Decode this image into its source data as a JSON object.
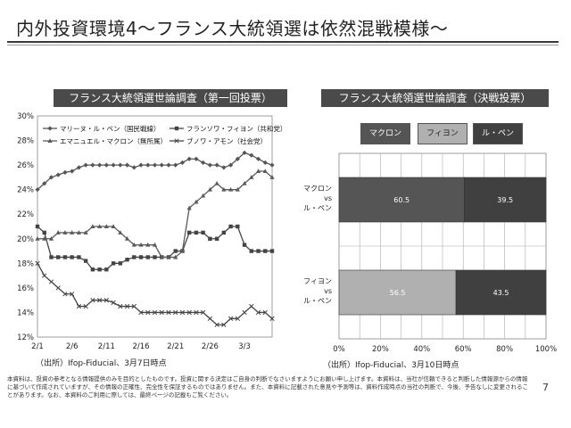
{
  "page": {
    "title": "内外投資環境4～フランス大統領選は依然混戦模様～",
    "page_number": "7",
    "disclaimer": "本資料は、投資の参考となる情報提供のみを目的としたものです。投資に関する決定はご自身の判断でなさいますようにお願い申し上げます。本資料は、当社が信頼できると判断した情報源からの情報に基づいて作成されていますが、その情報の正確性、完全性を保証するものではありません。また、本資料に記載された意見や予測等は、資料作成時点の当社の判断で、今後、予告なしに変更されることがあります。なお、本資料のご利用に際しては、最終ページの記載もご覧ください。"
  },
  "left_panel": {
    "banner": "フランス大統領選世論調査（第一回投票）",
    "source": "（出所）Ifop-Fiducial、3月7日時点"
  },
  "right_panel": {
    "banner": "フランス大統領選世論調査（決戦投票）",
    "source": "（出所）Ifop-Fiducial、3月10日時点"
  },
  "chart_data": [
    {
      "type": "line",
      "title": "フランス大統領選世論調査（第一回投票）",
      "x_tick_labels": [
        "2/1",
        "2/6",
        "2/11",
        "2/16",
        "2/21",
        "2/26",
        "3/3"
      ],
      "x_days": [
        "2/1",
        "2/2",
        "2/3",
        "2/4",
        "2/5",
        "2/6",
        "2/7",
        "2/8",
        "2/9",
        "2/10",
        "2/11",
        "2/12",
        "2/13",
        "2/14",
        "2/15",
        "2/16",
        "2/17",
        "2/18",
        "2/19",
        "2/20",
        "2/21",
        "2/22",
        "2/23",
        "2/24",
        "2/25",
        "2/26",
        "2/27",
        "2/28",
        "3/1",
        "3/2",
        "3/3",
        "3/4",
        "3/5",
        "3/6",
        "3/7"
      ],
      "y_ticks": [
        "12%",
        "14%",
        "16%",
        "18%",
        "20%",
        "22%",
        "24%",
        "26%",
        "28%",
        "30%"
      ],
      "ylim": [
        12,
        30
      ],
      "series": [
        {
          "name": "マリーヌ・ル・ペン（国民戦線）",
          "marker": "diamond",
          "color": "#555555",
          "values": [
            24,
            24.5,
            25,
            25.2,
            25.4,
            25.5,
            25.8,
            26,
            26,
            26,
            26,
            26,
            26,
            26,
            25.8,
            26,
            26,
            26,
            26,
            26,
            26,
            26.2,
            26.5,
            26.5,
            26.2,
            26,
            26,
            25.8,
            26,
            26.5,
            27,
            26.8,
            26.5,
            26.2,
            26
          ]
        },
        {
          "name": "フランソワ・フィヨン（共和党）",
          "marker": "square",
          "color": "#444444",
          "values": [
            21,
            20.5,
            18.5,
            18.5,
            18.5,
            18.5,
            18.5,
            18.2,
            17.5,
            17.5,
            17.5,
            18,
            18,
            18.3,
            18.5,
            18.5,
            18.5,
            18.5,
            18.5,
            18.5,
            19,
            19,
            20.5,
            20.5,
            20.5,
            20,
            20,
            20.5,
            21,
            21,
            19.5,
            19,
            19,
            19,
            19
          ]
        },
        {
          "name": "エマニュエル・マクロン（無所属）",
          "marker": "triangle",
          "color": "#5a5a5a",
          "values": [
            20,
            20,
            20,
            20.5,
            20.5,
            20.5,
            20.5,
            20.5,
            21,
            21,
            21,
            21,
            20.5,
            20,
            19.5,
            19.5,
            19.5,
            19.5,
            18.5,
            18.5,
            18.5,
            19,
            22.5,
            23,
            23.5,
            24,
            24.5,
            24,
            24,
            24,
            24.5,
            25,
            25.5,
            25.5,
            25
          ]
        },
        {
          "name": "ブノワ・アモン（社会党）",
          "marker": "x",
          "color": "#444444",
          "values": [
            18,
            17,
            16.5,
            16,
            15.5,
            15.5,
            14.5,
            14.5,
            15,
            15,
            15,
            14.8,
            14.5,
            14.5,
            14.5,
            14,
            14,
            14,
            14,
            14,
            14,
            14,
            14,
            14,
            14,
            13.5,
            13,
            13,
            13.5,
            13.5,
            14,
            14.5,
            14,
            14,
            13.5
          ]
        }
      ]
    },
    {
      "type": "bar",
      "orientation": "horizontal-stacked",
      "title": "フランス大統領選世論調査（決戦投票）",
      "categories": [
        "マクロン vs ル・ペン",
        "フィヨン vs ル・ペン"
      ],
      "category_lines": [
        [
          "マクロン",
          "vs",
          "ル・ペン"
        ],
        [
          "フィヨン",
          "vs",
          "ル・ペン"
        ]
      ],
      "legend": [
        "マクロン",
        "フィヨン",
        "ル・ペン"
      ],
      "x_ticks": [
        "0%",
        "20%",
        "40%",
        "60%",
        "80%",
        "100%"
      ],
      "xlim": [
        0,
        100
      ],
      "series": [
        {
          "name": "マクロン",
          "color": "#555555",
          "values": [
            60.5,
            null
          ]
        },
        {
          "name": "フィヨン",
          "color": "#b0b0b0",
          "values": [
            null,
            56.5
          ]
        },
        {
          "name": "ル・ペン",
          "color": "#404040",
          "values": [
            39.5,
            43.5
          ]
        }
      ],
      "data_labels": [
        [
          "60.5",
          "39.5"
        ],
        [
          "56.5",
          "43.5"
        ]
      ]
    }
  ]
}
